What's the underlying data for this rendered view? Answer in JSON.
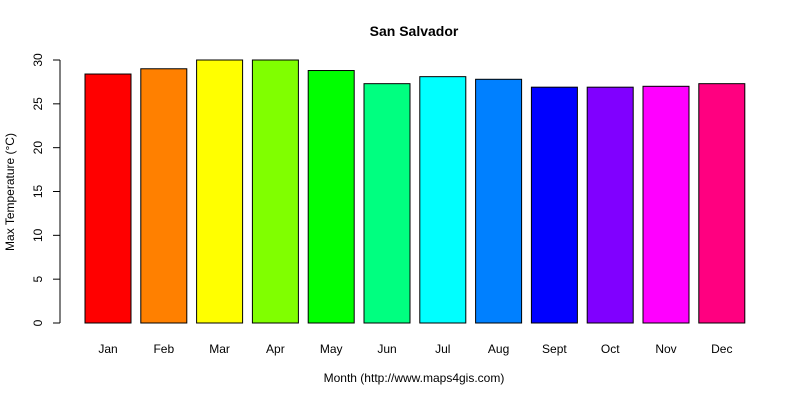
{
  "chart_data": {
    "type": "bar",
    "title": "San Salvador",
    "xlabel": "Month (http://www.maps4gis.com)",
    "ylabel": "Max Temperature (°C)",
    "categories": [
      "Jan",
      "Feb",
      "Mar",
      "Apr",
      "May",
      "Jun",
      "Jul",
      "Aug",
      "Sept",
      "Oct",
      "Nov",
      "Dec"
    ],
    "values": [
      28.4,
      29.0,
      30.0,
      30.0,
      28.8,
      27.3,
      28.1,
      27.8,
      26.9,
      26.9,
      27.0,
      27.3
    ],
    "colors": [
      "#FF0000",
      "#FF8000",
      "#FFFF00",
      "#80FF00",
      "#00FF00",
      "#00FF80",
      "#00FFFF",
      "#0080FF",
      "#0000FF",
      "#8000FF",
      "#FF00FF",
      "#FF0080"
    ],
    "yticks": [
      0,
      5,
      10,
      15,
      20,
      25,
      30
    ],
    "ylim": [
      0,
      30
    ],
    "grid": false
  }
}
